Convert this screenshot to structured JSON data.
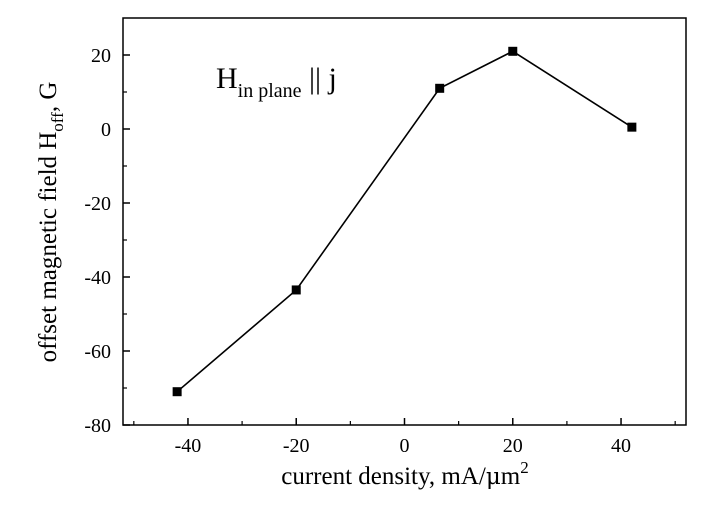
{
  "chart_data": {
    "type": "line",
    "title": "",
    "xlabel": {
      "main": "current density, mA/",
      "mu": "μ",
      "m": "m",
      "sup": "2"
    },
    "ylabel": {
      "main": "offset magnetic field H",
      "sub": "off",
      "tail": ", G"
    },
    "annotation": {
      "main": "H",
      "sub": "in plane",
      "tail": " || j"
    },
    "xlim": [
      -52,
      52
    ],
    "ylim": [
      -80,
      30
    ],
    "xticks": [
      -40,
      -20,
      0,
      20,
      40
    ],
    "yticks": [
      -80,
      -60,
      -40,
      -20,
      0,
      20
    ],
    "grid": false,
    "series": [
      {
        "x": [
          -42,
          -20,
          6.5,
          20,
          42
        ],
        "y": [
          -71,
          -43.5,
          11,
          21,
          0.5
        ],
        "color": "#000000",
        "marker": "square"
      }
    ]
  }
}
